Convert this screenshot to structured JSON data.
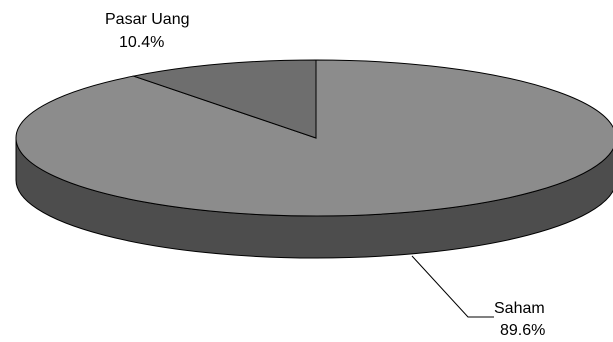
{
  "chart_data": {
    "type": "pie",
    "style": "3d",
    "slices": [
      {
        "label": "Saham",
        "value": 89.6,
        "value_label": "89.6%",
        "color": "#8c8c8c",
        "side_color": "#4d4d4d"
      },
      {
        "label": "Pasar Uang",
        "value": 10.4,
        "value_label": "10.4%",
        "color": "#6e6e6e",
        "side_color": "#3c3c3c"
      }
    ],
    "legend": false
  }
}
